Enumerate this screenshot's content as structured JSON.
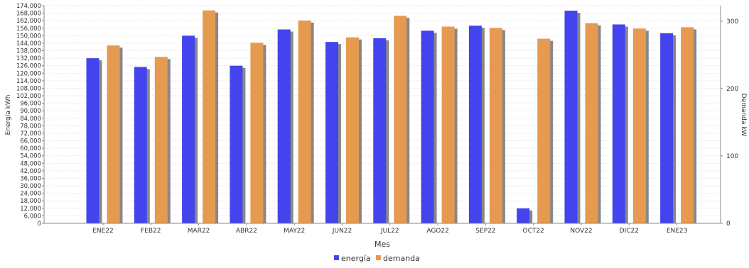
{
  "chart_data": {
    "type": "bar",
    "xlabel": "Mes",
    "ylabel_left": "Energía kWh",
    "ylabel_right": "Demanda kW",
    "categories": [
      "ENE22",
      "FEB22",
      "MAR22",
      "ABR22",
      "MAY22",
      "JUN22",
      "JUL22",
      "AGO22",
      "SEP22",
      "OCT22",
      "NOV22",
      "DIC22",
      "ENE23"
    ],
    "series": [
      {
        "name": "energía",
        "axis": "left",
        "color": "#4444ee",
        "values": [
          132000,
          125000,
          150000,
          126000,
          155000,
          145000,
          148000,
          154000,
          158000,
          12000,
          170000,
          159000,
          152000
        ]
      },
      {
        "name": "demanda",
        "axis": "right",
        "color": "#e69a50",
        "values": [
          264,
          247,
          316,
          268,
          301,
          276,
          308,
          292,
          290,
          274,
          297,
          289,
          291
        ]
      }
    ],
    "ylim_left": [
      0,
      174000
    ],
    "yticks_left": [
      "174,000",
      "168,000",
      "162,000",
      "156,000",
      "150,000",
      "144,000",
      "138,000",
      "132,000",
      "126,000",
      "120,000",
      "114,000",
      "108,000",
      "102,000",
      "96,000",
      "90,000",
      "84,000",
      "78,000",
      "72,000",
      "66,000",
      "60,000",
      "54,000",
      "48,000",
      "42,000",
      "36,000",
      "30,000",
      "24,000",
      "18,000",
      "12,000",
      "6,000",
      "0"
    ],
    "ylim_right": [
      0,
      323
    ],
    "yticks_right": [
      "300",
      "200",
      "100",
      "0"
    ],
    "grid": true,
    "legend_position": "bottom-center"
  }
}
